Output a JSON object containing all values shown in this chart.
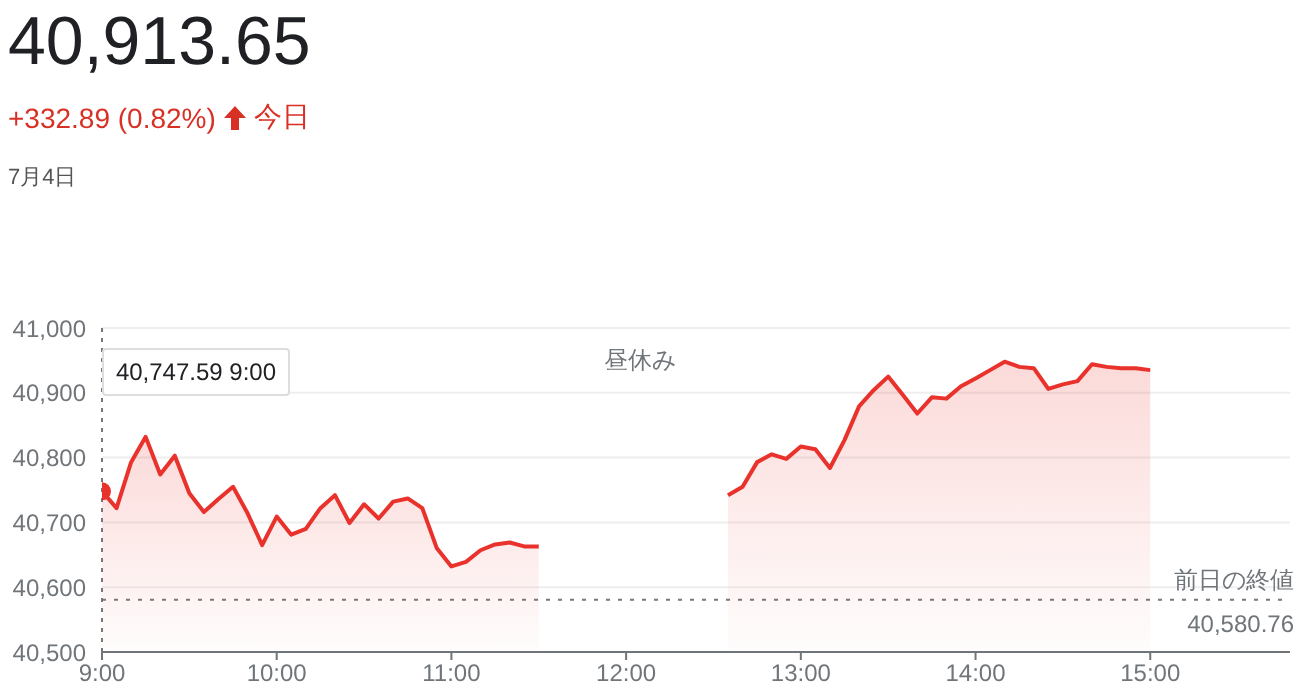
{
  "chart_data": {
    "type": "area",
    "title": "40,913.65",
    "subtitle": "+332.89 (0.82%)",
    "annotations": [
      "今日",
      "7月4日",
      "昼休み",
      "40,747.59 9:00",
      "40,580.76"
    ],
    "series": [
      {
        "color": "#e8322b",
        "x": [
          9,
          9.0833,
          9.1667,
          9.25,
          9.3333,
          9.4167,
          9.5,
          9.5833,
          9.6667,
          9.75,
          9.8333,
          9.9167,
          10,
          10.0833,
          10.1667,
          10.25,
          10.3333,
          10.4167,
          10.5,
          10.5833,
          10.6667,
          10.75,
          10.8333,
          10.9167,
          11,
          11.0833,
          11.1667,
          11.25,
          11.3333,
          11.4167,
          11.5
        ],
        "values": [
          40748,
          40722,
          40793,
          40832,
          40774,
          40803,
          40745,
          40716,
          40736,
          40755,
          40714,
          40665,
          40709,
          40681,
          40690,
          40722,
          40742,
          40699,
          40728,
          40706,
          40732,
          40737,
          40722,
          40660,
          40632,
          40639,
          40657,
          40666,
          40669,
          40663,
          40663
        ]
      },
      {
        "color": "#e8322b",
        "x": [
          12.5833,
          12.6667,
          12.75,
          12.8333,
          12.9167,
          13,
          13.0833,
          13.1667,
          13.25,
          13.3333,
          13.4167,
          13.5,
          13.5833,
          13.6667,
          13.75,
          13.8333,
          13.9167,
          14,
          14.0833,
          14.1667,
          14.25,
          14.3333,
          14.4167,
          14.5,
          14.5833,
          14.6667,
          14.75,
          14.8333,
          14.9167,
          15
        ],
        "values": [
          40742,
          40755,
          40793,
          40805,
          40798,
          40817,
          40813,
          40784,
          40827,
          40879,
          40904,
          40925,
          40897,
          40868,
          40893,
          40891,
          40910,
          40922,
          40935,
          40948,
          40940,
          40938,
          40906,
          40913,
          40918,
          40944,
          40940,
          40938,
          40938,
          40935
        ]
      },
      {
        "type": "scatter",
        "color": "#e8322b",
        "x": [
          9
        ],
        "values": [
          40748
        ]
      }
    ],
    "xlim": [
      9,
      15.8
    ],
    "xticks": [
      {
        "value": 9,
        "label": "9:00"
      },
      {
        "value": 10,
        "label": "10:00"
      },
      {
        "value": 11,
        "label": "11:00"
      },
      {
        "value": 12,
        "label": "12:00"
      },
      {
        "value": 13,
        "label": "13:00"
      },
      {
        "value": 14,
        "label": "14:00"
      },
      {
        "value": 15,
        "label": "15:00"
      }
    ],
    "ylim": [
      40500,
      41000
    ],
    "yticks": [
      {
        "value": 40500,
        "label": "40,500"
      },
      {
        "value": 40600,
        "label": "40,600"
      },
      {
        "value": 40700,
        "label": "40,700"
      },
      {
        "value": 40800,
        "label": "40,800"
      },
      {
        "value": 40900,
        "label": "40,900"
      },
      {
        "value": 41000,
        "label": "41,000"
      }
    ],
    "ref_lines": [
      {
        "axis": "y",
        "value": 40580.76,
        "label": "前日の終値",
        "line_style": "dotted",
        "color": "#777777"
      }
    ],
    "grid": "y"
  }
}
